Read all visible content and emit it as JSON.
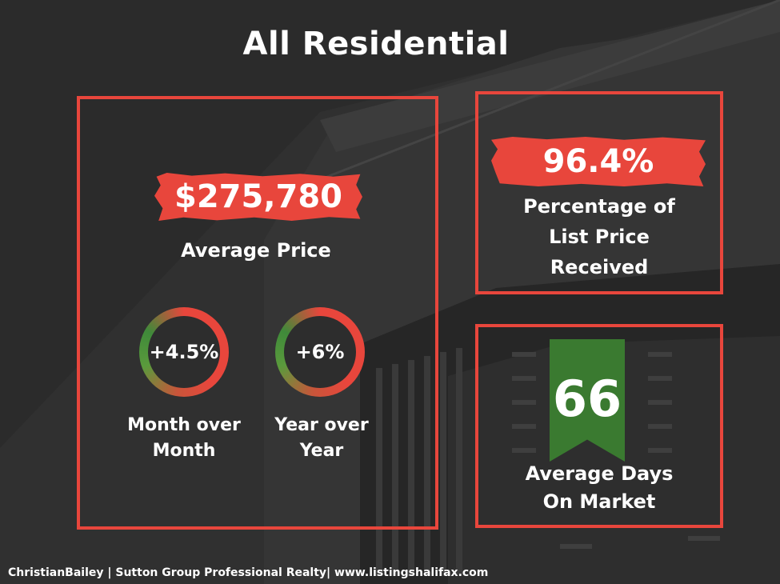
{
  "title": "All Residential",
  "average_price": {
    "value": "$275,780",
    "label": "Average Price"
  },
  "month_over_month": {
    "value": "+4.5%",
    "label_line1": "Month over",
    "label_line2": "Month"
  },
  "year_over_year": {
    "value": "+6%",
    "label_line1": "Year over",
    "label_line2": "Year"
  },
  "list_price": {
    "value": "96.4%",
    "label_line1": "Percentage of",
    "label_line2": "List Price",
    "label_line3": "Received"
  },
  "days_on_market": {
    "value": "66",
    "label_line1": "Average Days",
    "label_line2": "On Market"
  },
  "footer": "ChristianBailey | Sutton Group Professional Realty| www.listingshalifax.com",
  "colors": {
    "accent_red": "#e8463c",
    "ribbon_green": "#3a7a30",
    "ring_green": "#3f8a3a",
    "background": "#2b2b2b"
  }
}
